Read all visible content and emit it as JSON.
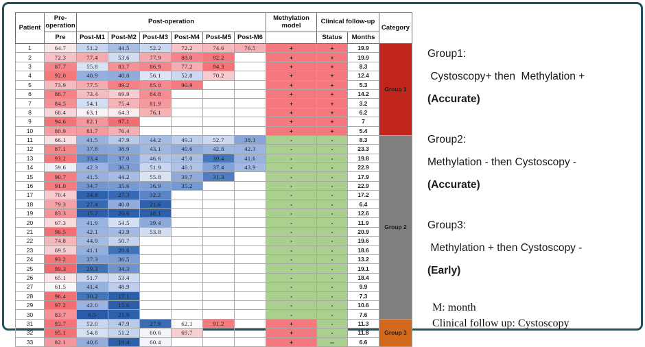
{
  "chart_data": {
    "type": "heatmap-table",
    "headers": {
      "patient": "Patient",
      "pre_operation": "Pre-operation",
      "pre_sub": "Pre",
      "post_operation": "Post-operation",
      "post_subs": [
        "Post-M1",
        "Post-M2",
        "Post-M3",
        "Post-M4",
        "Post-M5",
        "Post-M6"
      ],
      "methylation_model": "Methylation model",
      "clinical_follow_up": "Clinical follow-up",
      "status": "Status",
      "months": "Months",
      "category": "Category"
    },
    "rows": [
      {
        "patient": "1",
        "pre": "64.7",
        "post": [
          "51.2",
          "44.5",
          "52.2",
          "72.2",
          "74.6",
          "76.5"
        ],
        "methylation": "+",
        "status": "+",
        "months": "19.9"
      },
      {
        "patient": "2",
        "pre": "72.3",
        "post": [
          "77.4",
          "53.6",
          "77.9",
          "88.0",
          "92.2",
          null
        ],
        "methylation": "+",
        "status": "+",
        "months": "19.9"
      },
      {
        "patient": "3",
        "pre": "87.7",
        "post": [
          "55.8",
          "83.7",
          "86.9",
          "77.2",
          "94.3",
          null
        ],
        "methylation": "+",
        "status": "+",
        "months": "8.3"
      },
      {
        "patient": "4",
        "pre": "92.0",
        "post": [
          "40.9",
          "40.0",
          "56.1",
          "52.8",
          "70.2",
          null
        ],
        "methylation": "+",
        "status": "+",
        "months": "12.4"
      },
      {
        "patient": "5",
        "pre": "73.9",
        "post": [
          "77.5",
          "89.2",
          "85.8",
          "90.9",
          null,
          null
        ],
        "methylation": "+",
        "status": "+",
        "months": "5.3"
      },
      {
        "patient": "6",
        "pre": "88.7",
        "post": [
          "73.4",
          "69.9",
          "84.8",
          null,
          null,
          null
        ],
        "methylation": "+",
        "status": "+",
        "months": "14.2"
      },
      {
        "patient": "7",
        "pre": "84.5",
        "post": [
          "54.1",
          "75.4",
          "81.9",
          null,
          null,
          null
        ],
        "methylation": "+",
        "status": "+",
        "months": "3.2"
      },
      {
        "patient": "8",
        "pre": "68.4",
        "post": [
          "63.1",
          "64.3",
          "76.1",
          null,
          null,
          null
        ],
        "methylation": "+",
        "status": "+",
        "months": "6.2"
      },
      {
        "patient": "9",
        "pre": "94.6",
        "post": [
          "82.1",
          "97.1",
          null,
          null,
          null,
          null
        ],
        "methylation": "+",
        "status": "+",
        "months": "7"
      },
      {
        "patient": "10",
        "pre": "80.9",
        "post": [
          "81.7",
          "76.4",
          null,
          null,
          null,
          null
        ],
        "methylation": "+",
        "status": "+",
        "months": "5.4"
      },
      {
        "patient": "11",
        "pre": "66.1",
        "post": [
          "41.5",
          "47.9",
          "44.2",
          "49.3",
          "52.7",
          "38.1"
        ],
        "methylation": "-",
        "status": "-",
        "months": "8.3"
      },
      {
        "patient": "12",
        "pre": "87.1",
        "post": [
          "37.8",
          "38.9",
          "43.1",
          "40.6",
          "42.8",
          "42.3"
        ],
        "methylation": "-",
        "status": "-",
        "months": "23.3"
      },
      {
        "patient": "13",
        "pre": "93.2",
        "post": [
          "33.4",
          "37.0",
          "46.6",
          "45.0",
          "30.4",
          "41.6"
        ],
        "methylation": "-",
        "status": "-",
        "months": "19.8"
      },
      {
        "patient": "14",
        "pre": "59.6",
        "post": [
          "42.3",
          "36.3",
          "51.9",
          "46.1",
          "37.4",
          "43.9"
        ],
        "methylation": "-",
        "status": "-",
        "months": "22.9"
      },
      {
        "patient": "15",
        "pre": "90.7",
        "post": [
          "41.5",
          "44.2",
          "55.8",
          "39.7",
          "31.3",
          null
        ],
        "methylation": "-",
        "status": "-",
        "months": "17.9"
      },
      {
        "patient": "16",
        "pre": "91.0",
        "post": [
          "34.7",
          "35.6",
          "36.9",
          "35.2",
          null,
          null
        ],
        "methylation": "-",
        "status": "-",
        "months": "22.9"
      },
      {
        "patient": "17",
        "pre": "70.4",
        "post": [
          "24.8",
          "27.3",
          "32.2",
          null,
          null,
          null
        ],
        "methylation": "-",
        "status": "-",
        "months": "17.2"
      },
      {
        "patient": "18",
        "pre": "79.3",
        "post": [
          "27.4",
          "40.0",
          "21.6",
          null,
          null,
          null
        ],
        "methylation": "-",
        "status": "-",
        "months": "6.4"
      },
      {
        "patient": "19",
        "pre": "83.3",
        "post": [
          "15.2",
          "20.6",
          "18.1",
          null,
          null,
          null
        ],
        "methylation": "-",
        "status": "-",
        "months": "12.6"
      },
      {
        "patient": "20",
        "pre": "67.3",
        "post": [
          "41.9",
          "54.5",
          "39.4",
          null,
          null,
          null
        ],
        "methylation": "-",
        "status": "-",
        "months": "11.9"
      },
      {
        "patient": "21",
        "pre": "96.5",
        "post": [
          "42.1",
          "43.9",
          "53.8",
          null,
          null,
          null
        ],
        "methylation": "-",
        "status": "-",
        "months": "20.9"
      },
      {
        "patient": "22",
        "pre": "74.8",
        "post": [
          "44.0",
          "50.7",
          null,
          null,
          null,
          null
        ],
        "methylation": "-",
        "status": "-",
        "months": "19.6"
      },
      {
        "patient": "23",
        "pre": "69.5",
        "post": [
          "41.1",
          "29.6",
          null,
          null,
          null,
          null
        ],
        "methylation": "-",
        "status": "-",
        "months": "18.6"
      },
      {
        "patient": "24",
        "pre": "93.2",
        "post": [
          "37.3",
          "36.5",
          null,
          null,
          null,
          null
        ],
        "methylation": "-",
        "status": "-",
        "months": "13.2"
      },
      {
        "patient": "25",
        "pre": "99.3",
        "post": [
          "29.3",
          "34.3",
          null,
          null,
          null,
          null
        ],
        "methylation": "-",
        "status": "-",
        "months": "19.1"
      },
      {
        "patient": "26",
        "pre": "65.1",
        "post": [
          "51.7",
          "53.4",
          null,
          null,
          null,
          null
        ],
        "methylation": "-",
        "status": "-",
        "months": "18.4"
      },
      {
        "patient": "27",
        "pre": "61.5",
        "post": [
          "41.4",
          "48.9",
          null,
          null,
          null,
          null
        ],
        "methylation": "-",
        "status": "-",
        "months": "9.9"
      },
      {
        "patient": "28",
        "pre": "96.4",
        "post": [
          "30.2",
          "17.1",
          null,
          null,
          null,
          null
        ],
        "methylation": "-",
        "status": "-",
        "months": "7.3"
      },
      {
        "patient": "29",
        "pre": "97.2",
        "post": [
          "42.0",
          "15.6",
          null,
          null,
          null,
          null
        ],
        "methylation": "-",
        "status": "-",
        "months": "10.6"
      },
      {
        "patient": "30",
        "pre": "83.7",
        "post": [
          "6.5",
          "21.9",
          null,
          null,
          null,
          null
        ],
        "methylation": "-",
        "status": "-",
        "months": "7.6"
      },
      {
        "patient": "31",
        "pre": "93.7",
        "post": [
          "52.0",
          "47.9",
          "27.9",
          "62.1",
          "91.2",
          null
        ],
        "methylation": "+",
        "status": "-",
        "months": "11.3"
      },
      {
        "patient": "32",
        "pre": "95.1",
        "post": [
          "54.8",
          "51.2",
          "60.6",
          "69.7",
          null,
          null
        ],
        "methylation": "+",
        "status": "-",
        "months": "11.8"
      },
      {
        "patient": "33",
        "pre": "82.1",
        "post": [
          "40.6",
          "19.4",
          "60.4",
          null,
          null,
          null
        ],
        "methylation": "+",
        "status": "--",
        "months": "6.6"
      }
    ],
    "groups": [
      {
        "label": "Group 1",
        "start": 1,
        "end": 10,
        "color": "#C0261C"
      },
      {
        "label": "Group 2",
        "start": 11,
        "end": 30,
        "color": "#7F7F7F"
      },
      {
        "label": "Group 3",
        "start": 31,
        "end": 33,
        "color": "#D2691E"
      }
    ],
    "status_colors": {
      "plus": "#F4787D",
      "minus": "#A9D08E"
    },
    "heatmap_stops": [
      [
        5,
        "#2A5AA8"
      ],
      [
        25,
        "#2E62AC"
      ],
      [
        30,
        "#4273B8"
      ],
      [
        34,
        "#6D92CC"
      ],
      [
        38,
        "#87A5D8"
      ],
      [
        43,
        "#9FB7E2"
      ],
      [
        48,
        "#B9CAEA"
      ],
      [
        53,
        "#CEDAF1"
      ],
      [
        58,
        "#E4EAF7"
      ],
      [
        62,
        "#FBFAFC"
      ],
      [
        66,
        "#F8E0E3"
      ],
      [
        70,
        "#F7CDD1"
      ],
      [
        75,
        "#F6B6BA"
      ],
      [
        80,
        "#F5A0A5"
      ],
      [
        86,
        "#F48A8F"
      ],
      [
        92,
        "#F4797D"
      ],
      [
        100,
        "#F3686C"
      ]
    ]
  },
  "legend": {
    "groups": [
      {
        "title": "Group1:",
        "rule": " Cystoscopy+ then  Methylation +",
        "verdict": "(Accurate)"
      },
      {
        "title": "Group2:",
        "rule": "Methylation - then Cystoscopy -",
        "verdict": "(Accurate)"
      },
      {
        "title": "Group3:",
        "rule": " Methylation + then Cystoscopy -",
        "verdict": "(Early)"
      }
    ],
    "notes": [
      "M: month",
      "Clinical follow up: Cystoscopy"
    ]
  }
}
